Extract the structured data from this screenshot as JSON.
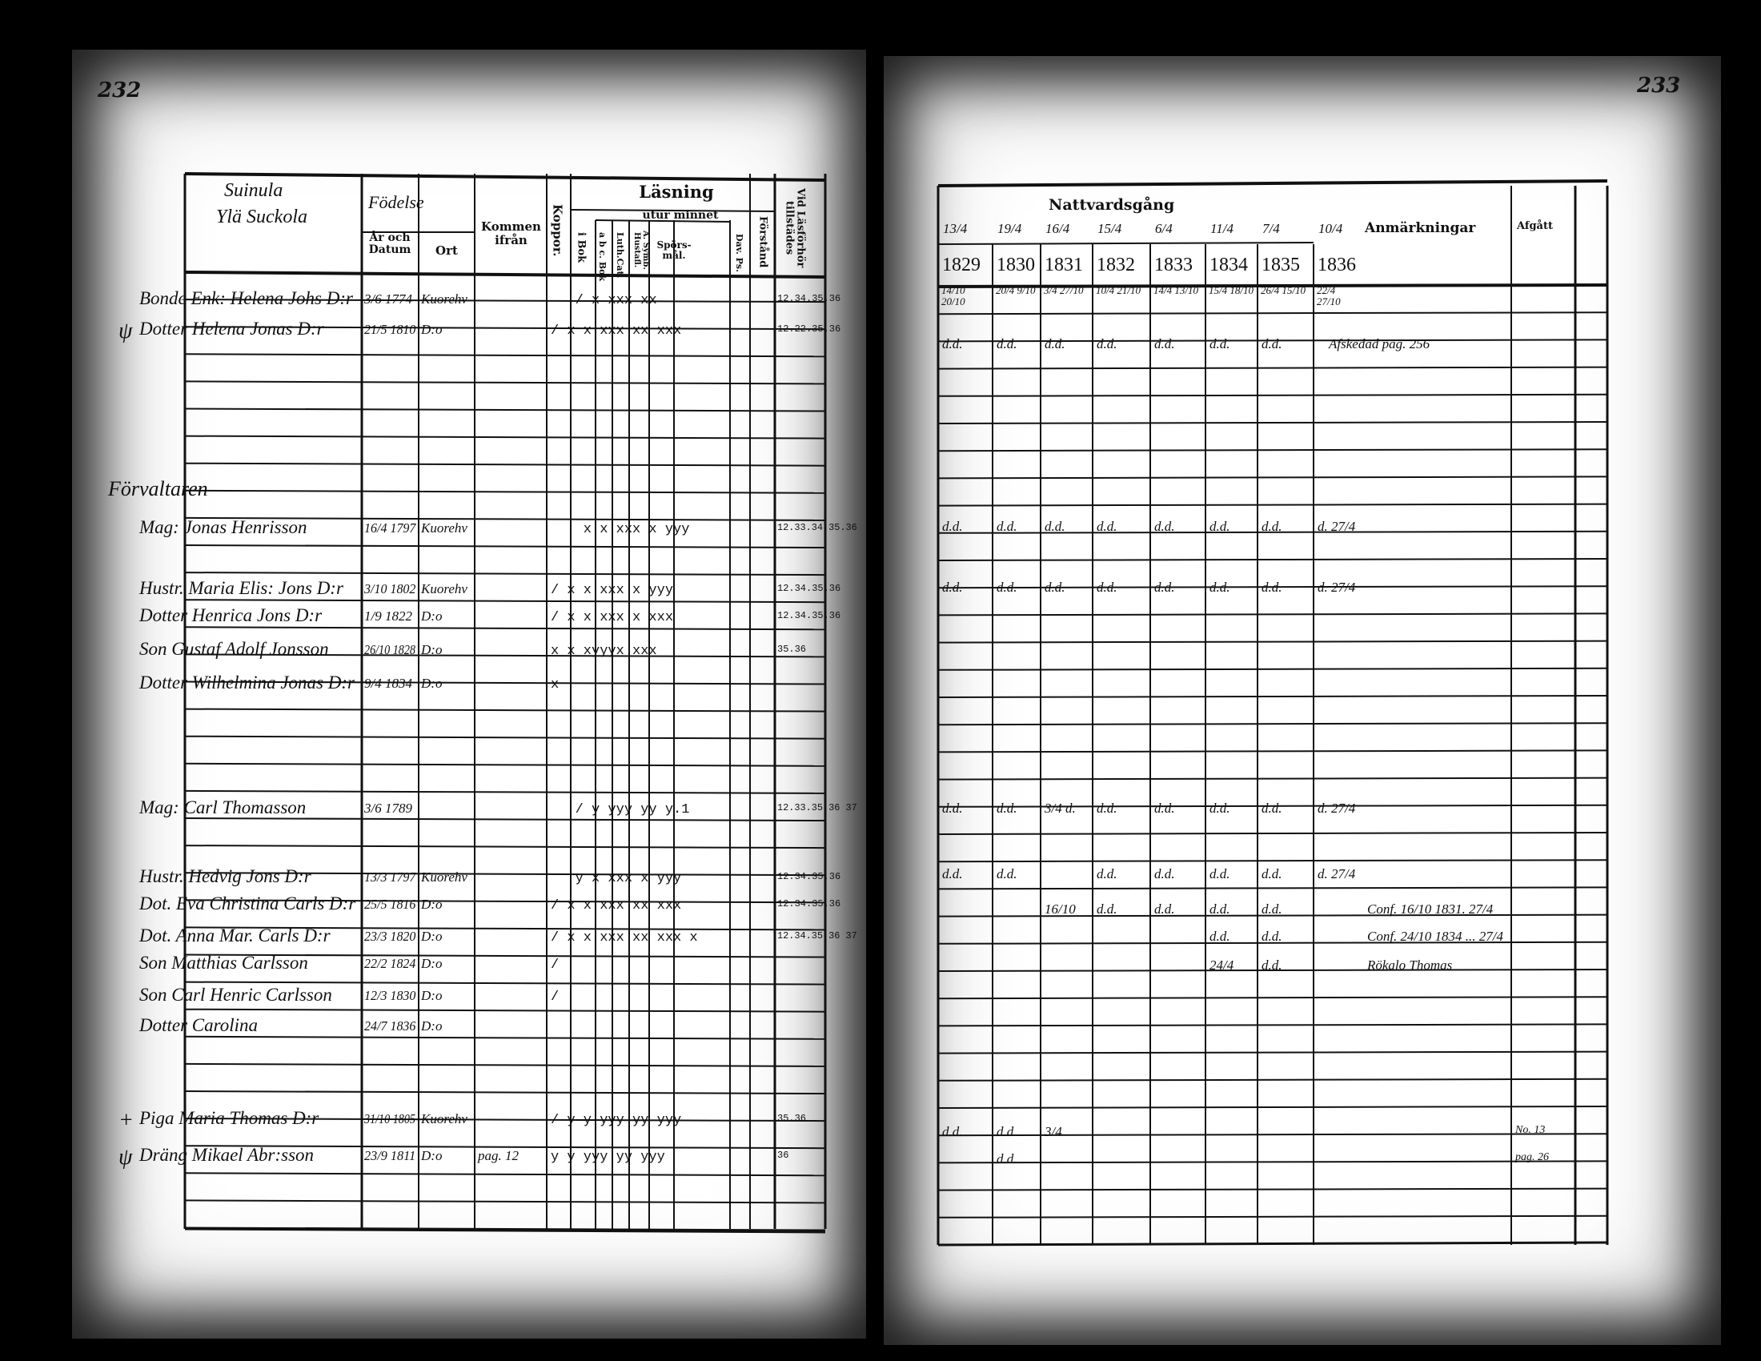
{
  "left_page": {
    "page_number": "232",
    "village_heading": [
      "Suinula",
      "Ylä Suckola"
    ],
    "headers": {
      "fodelse": "Födelse",
      "ar_och_datum": "År och Datum",
      "ort": "Ort",
      "kommen_ifran": "Kommen ifrån",
      "koppor": "Koppor.",
      "lasning": "Läsning",
      "utur_minnet": "utur minnet",
      "i_bok": "i Bok",
      "abc_bok": "a b c. Bok",
      "luth_cat": "Luth.Cat.",
      "a_symb_hustafl": "A. Symb. Hustafl.",
      "sporsmal": "Spörs-mål.",
      "dav_ps": "Dav. Ps.",
      "forstand": "Förstånd",
      "vid_lasforhor_tillstades": "Vid Läsförhör tillstädes"
    },
    "section_label": "Förvaltaren",
    "entries": [
      {
        "mark": "",
        "name": "Bonde Enk: Helena Johs D:r",
        "born": "3/6 1774",
        "place": "Kuorehv",
        "from": "",
        "readings": "   / x xxx xx",
        "attendance": "12.34.35.36"
      },
      {
        "mark": "ψ",
        "name": "Dotter Helena Jonas D:r",
        "born": "21/5 1810",
        "place": "D:o",
        "from": "",
        "readings": "/ x x xxx xx xxx",
        "attendance": "12.22.35.36"
      },
      {
        "mark": "",
        "name": "Mag: Jonas Henrisson",
        "born": "16/4 1797",
        "place": "Kuorehv",
        "from": "",
        "readings": "    x x xxx x yyy",
        "attendance": "12.33.34.35.36"
      },
      {
        "mark": "",
        "name": "Hustr. Maria Elis: Jons D:r",
        "born": "3/10 1802",
        "place": "Kuorehv",
        "from": "",
        "readings": "/ x x xxx x yyy",
        "attendance": "12.34.35.36"
      },
      {
        "mark": "",
        "name": "Dotter Henrica Jons D:r",
        "born": "1/9 1822",
        "place": "D:o",
        "from": "",
        "readings": "/ x x xxx x xxx",
        "attendance": "12.34.35.36"
      },
      {
        "mark": "",
        "name": "Son Gustaf Adolf Jonsson",
        "born": "26/10 1828",
        "place": "D:o",
        "from": "",
        "readings": "x x xyyyx xxx",
        "attendance": "35.36"
      },
      {
        "mark": "",
        "name": "Dotter Wilhelmina Jonas D:r",
        "born": "9/4 1834",
        "place": "D:o",
        "from": "",
        "readings": "x",
        "attendance": ""
      },
      {
        "mark": "",
        "name": "Mag: Carl Thomasson",
        "born": "3/6 1789",
        "place": "",
        "from": "",
        "readings": "   / y yyy yy y.1",
        "attendance": "12.33.35.36 37"
      },
      {
        "mark": "",
        "name": "Hustr. Hedvig Jons D:r",
        "born": "13/3 1797",
        "place": "Kuorehv",
        "from": "",
        "readings": "   y x xxx x yyy",
        "attendance": "12.34.35.36"
      },
      {
        "mark": "",
        "name": "Dot. Eva Christina Carls D:r",
        "born": "25/5 1816",
        "place": "D:o",
        "from": "",
        "readings": "/ x x xxx xx xxx",
        "attendance": "12.34.35.36"
      },
      {
        "mark": "",
        "name": "Dot. Anna Mar. Carls D:r",
        "born": "23/3 1820",
        "place": "D:o",
        "from": "",
        "readings": "/ x x xxx xx xxx x",
        "attendance": "12.34.35.36 37"
      },
      {
        "mark": "",
        "name": "Son Matthias Carlsson",
        "born": "22/2 1824",
        "place": "D:o",
        "from": "",
        "readings": "/",
        "attendance": ""
      },
      {
        "mark": "",
        "name": "Son Carl Henric Carlsson",
        "born": "12/3 1830",
        "place": "D:o",
        "from": "",
        "readings": "/",
        "attendance": ""
      },
      {
        "mark": "",
        "name": "Dotter Carolina",
        "born": "24/7 1836",
        "place": "D:o",
        "from": "",
        "readings": "",
        "attendance": ""
      },
      {
        "mark": "+",
        "name": "Piga Maria Thomas D:r",
        "born": "31/10 1805",
        "place": "Kuorehv",
        "from": "",
        "readings": "/ y y yyy yy yyy",
        "attendance": "35.36"
      },
      {
        "mark": "ψ",
        "name": "Dräng Mikael Abr:sson",
        "born": "23/9 1811",
        "place": "D:o",
        "from": "pag. 12",
        "readings": "y y yyy yy yyy",
        "attendance": "36"
      }
    ]
  },
  "right_page": {
    "page_number": "233",
    "headers": {
      "nattvardsgang": "Nattvardsgång",
      "anmarkningar": "Anmärkningar",
      "afgatt": "Afgått",
      "dates": [
        "13/4",
        "19/4",
        "16/4",
        "15/4",
        "6/4",
        "11/4",
        "7/4",
        "10/4"
      ],
      "years": [
        "1829",
        "1830",
        "1831",
        "1832",
        "1833",
        "1834",
        "1835",
        "1836"
      ]
    },
    "rows": [
      {
        "communion": [
          "14/10 20/10",
          "20/4 9/10",
          "3/4 27/10",
          "10/4 21/10",
          "14/4 13/10",
          "15/4 18/10",
          "26/4 15/10",
          "22/4 27/10"
        ],
        "remark": "",
        "afgatt": ""
      },
      {
        "communion": [
          "d.d.",
          "d.d.",
          "d.d.",
          "d.d.",
          "d.d.",
          "d.d.",
          "d.d.",
          ""
        ],
        "remark": "Afskedad pag. 256",
        "afgatt": ""
      },
      {
        "communion": [
          "d.d.",
          "d.d.",
          "d.d.",
          "d.d.",
          "d.d.",
          "d.d.",
          "d.d.",
          "d. 27/4"
        ],
        "remark": "",
        "afgatt": ""
      },
      {
        "communion": [
          "d.d.",
          "d.d.",
          "d.d.",
          "d.d.",
          "d.d.",
          "d.d.",
          "d.d.",
          "d. 27/4"
        ],
        "remark": "",
        "afgatt": ""
      },
      {
        "communion": [
          "d.d.",
          "d.d.",
          "3/4 d.",
          "d.d.",
          "d.d.",
          "d.d.",
          "d.d.",
          "d. 27/4"
        ],
        "remark": "",
        "afgatt": ""
      },
      {
        "communion": [
          "d.d.",
          "d.d.",
          "",
          "d.d.",
          "d.d.",
          "d.d.",
          "d.d.",
          "d. 27/4"
        ],
        "remark": "",
        "afgatt": ""
      },
      {
        "communion": [
          "",
          "",
          "16/10",
          "d.d.",
          "d.d.",
          "d.d.",
          "d.d.",
          ""
        ],
        "remark": "Conf. 16/10 1831. 27/4",
        "afgatt": ""
      },
      {
        "communion": [
          "",
          "",
          "",
          "",
          "",
          "d.d.",
          "d.d.",
          ""
        ],
        "remark": "Conf. 24/10 1834 ... 27/4",
        "afgatt": ""
      },
      {
        "communion": [
          "",
          "",
          "",
          "",
          "",
          "24/4",
          "d.d.",
          ""
        ],
        "remark": "Rökalo Thomas",
        "afgatt": ""
      },
      {
        "communion": [
          "d.d.",
          "d.d.",
          "3/4",
          "",
          "",
          "",
          "",
          ""
        ],
        "remark": "",
        "afgatt": "No. 13"
      },
      {
        "communion": [
          "",
          "d.d.",
          "",
          "",
          "",
          "",
          "",
          ""
        ],
        "remark": "",
        "afgatt": "pag. 26"
      }
    ]
  }
}
